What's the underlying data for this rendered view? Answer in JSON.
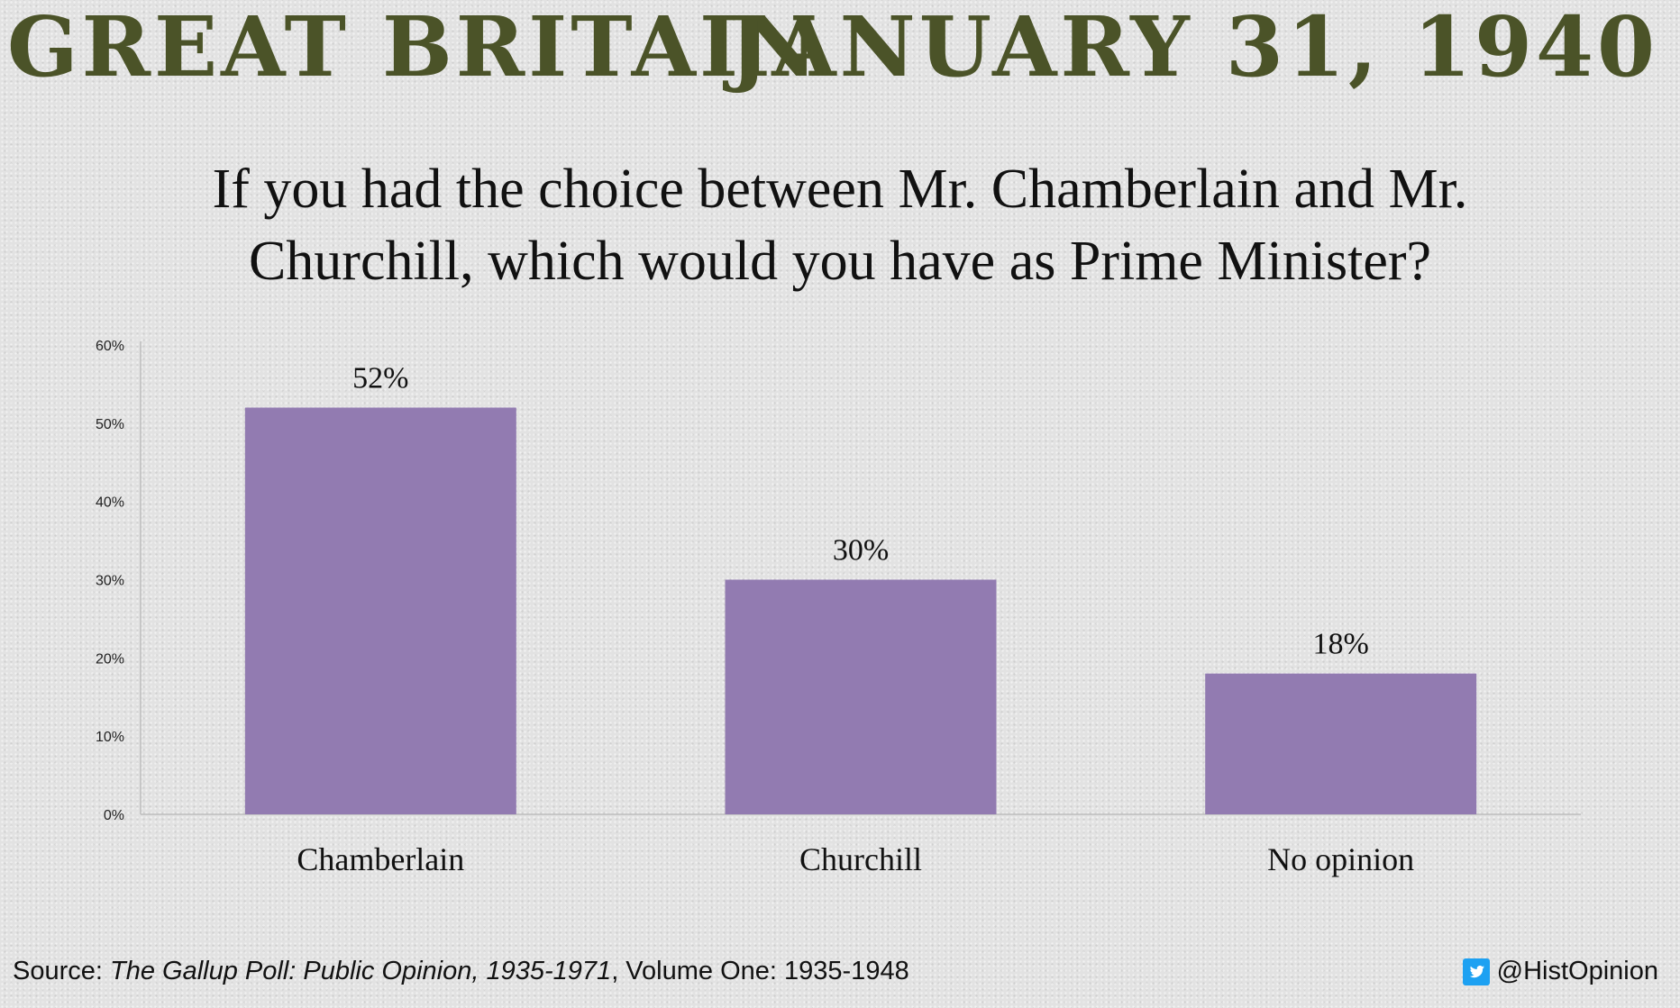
{
  "header": {
    "left": "GREAT BRITAIN",
    "right": "JANUARY 31, 1940"
  },
  "question": {
    "line1": "If you had the choice between Mr. Chamberlain and Mr.",
    "line2": "Churchill, which would you have as Prime Minister?"
  },
  "chart_data": {
    "type": "bar",
    "title": "If you had the choice between Mr. Chamberlain and Mr. Churchill, which would you have as Prime Minister?",
    "categories": [
      "Chamberlain",
      "Churchill",
      "No opinion"
    ],
    "values": [
      52,
      30,
      18
    ],
    "data_labels": [
      "52%",
      "30%",
      "18%"
    ],
    "ylim": [
      0,
      60
    ],
    "yticks": [
      0,
      10,
      20,
      30,
      40,
      50,
      60
    ],
    "ytick_labels": [
      "0%",
      "10%",
      "20%",
      "30%",
      "40%",
      "50%",
      "60%"
    ],
    "bar_color": "#927bb1",
    "grid": false,
    "legend": "none"
  },
  "footer": {
    "source_prefix": "Source: ",
    "source_title": "The Gallup Poll: Public Opinion, 1935-1971",
    "source_rest": ", Volume One: 1935-1948",
    "handle": "@HistOpinion"
  },
  "colors": {
    "header": "#4b5328",
    "twitter": "#1da1f2"
  },
  "icons": {
    "twitter": "twitter-bird-icon"
  }
}
